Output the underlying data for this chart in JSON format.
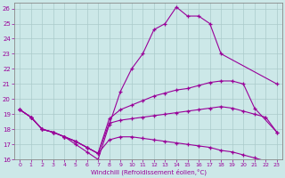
{
  "xlabel": "Windchill (Refroidissement éolien,°C)",
  "bg_color": "#cce8e8",
  "grid_color": "#aacaca",
  "line_color": "#990099",
  "xlim": [
    -0.5,
    23.5
  ],
  "ylim": [
    16,
    26.4
  ],
  "xticks": [
    0,
    1,
    2,
    3,
    4,
    5,
    6,
    7,
    8,
    9,
    10,
    11,
    12,
    13,
    14,
    15,
    16,
    17,
    18,
    19,
    20,
    21,
    22,
    23
  ],
  "yticks": [
    16,
    17,
    18,
    19,
    20,
    21,
    22,
    23,
    24,
    25,
    26
  ],
  "lines": [
    {
      "x": [
        0,
        1,
        2,
        3,
        4,
        5,
        6,
        7,
        8,
        9,
        10,
        11,
        12,
        13,
        14,
        15,
        16,
        17,
        18,
        23
      ],
      "y": [
        19.3,
        18.8,
        18.0,
        17.8,
        17.5,
        17.0,
        16.5,
        16.0,
        18.3,
        20.5,
        22.0,
        23.0,
        24.6,
        25.0,
        26.1,
        25.5,
        25.5,
        25.0,
        23.0,
        21.0
      ]
    },
    {
      "x": [
        0,
        1,
        2,
        3,
        4,
        5,
        6,
        7,
        8,
        9,
        10,
        11,
        12,
        13,
        14,
        15,
        16,
        17,
        18,
        19,
        20,
        21,
        23
      ],
      "y": [
        19.3,
        18.8,
        18.0,
        17.8,
        17.5,
        17.2,
        16.8,
        16.4,
        18.7,
        19.3,
        19.6,
        19.9,
        20.2,
        20.4,
        20.6,
        20.7,
        20.9,
        21.1,
        21.2,
        21.2,
        21.0,
        19.4,
        17.8
      ]
    },
    {
      "x": [
        0,
        1,
        2,
        3,
        4,
        5,
        6,
        7,
        8,
        9,
        10,
        11,
        12,
        13,
        14,
        15,
        16,
        17,
        18,
        19,
        20,
        21,
        22,
        23
      ],
      "y": [
        19.3,
        18.8,
        18.0,
        17.8,
        17.5,
        17.2,
        16.8,
        16.4,
        18.4,
        18.6,
        18.7,
        18.8,
        18.9,
        19.0,
        19.1,
        19.2,
        19.3,
        19.4,
        19.5,
        19.4,
        19.2,
        19.0,
        18.8,
        17.8
      ]
    },
    {
      "x": [
        0,
        1,
        2,
        3,
        4,
        5,
        6,
        7,
        8,
        9,
        10,
        11,
        12,
        13,
        14,
        15,
        16,
        17,
        18,
        19,
        20,
        21,
        22,
        23
      ],
      "y": [
        19.3,
        18.8,
        18.0,
        17.8,
        17.5,
        17.2,
        16.8,
        16.4,
        17.3,
        17.5,
        17.5,
        17.4,
        17.3,
        17.2,
        17.1,
        17.0,
        16.9,
        16.8,
        16.6,
        16.5,
        16.3,
        16.1,
        15.9,
        15.7
      ]
    }
  ]
}
